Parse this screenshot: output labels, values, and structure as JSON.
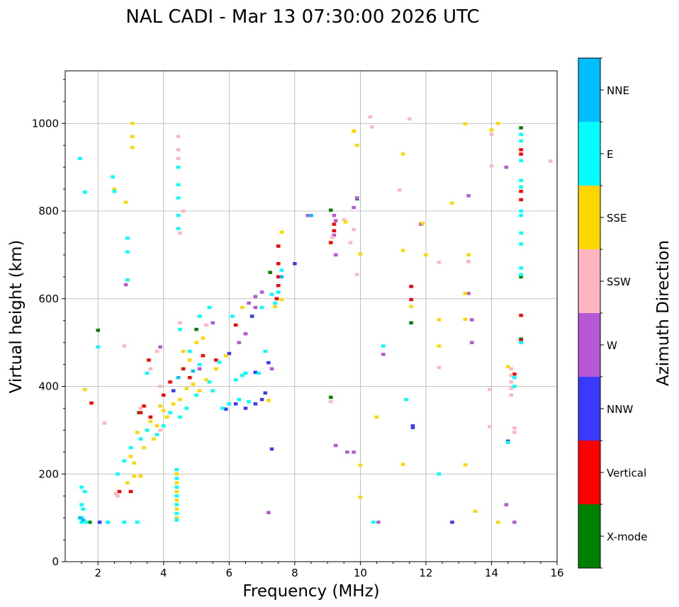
{
  "chart_data": {
    "type": "scatter",
    "title": "NAL CADI - Mar 13 07:30:00 2026 UTC",
    "xlabel": "Frequency (MHz)",
    "ylabel": "Virtual height (km)",
    "xlim": [
      1,
      16
    ],
    "ylim": [
      0,
      1120
    ],
    "xticks": [
      2,
      4,
      6,
      8,
      10,
      12,
      14,
      16
    ],
    "yticks": [
      0,
      200,
      400,
      600,
      800,
      1000
    ],
    "grid": true,
    "colorbar": {
      "label": "Azimuth Direction",
      "categories": [
        {
          "name": "X-mode",
          "color": "#008000"
        },
        {
          "name": "Vertical",
          "color": "#ff0000"
        },
        {
          "name": "NNW",
          "color": "#3a3aff"
        },
        {
          "name": "W",
          "color": "#b657d6"
        },
        {
          "name": "SSW",
          "color": "#ffb6c1"
        },
        {
          "name": "SSE",
          "color": "#ffd700"
        },
        {
          "name": "E",
          "color": "#00ffff"
        },
        {
          "name": "NNE",
          "color": "#00bfff"
        }
      ]
    },
    "series": [
      {
        "name": "X-mode",
        "points": [
          [
            1.75,
            90
          ],
          [
            2.0,
            528
          ],
          [
            9.1,
            802
          ],
          [
            9.1,
            375
          ],
          [
            9.9,
            828
          ],
          [
            11.55,
            545
          ],
          [
            14.9,
            990
          ],
          [
            14.9,
            650
          ],
          [
            14.9,
            508
          ],
          [
            7.25,
            660
          ],
          [
            3.25,
            340
          ],
          [
            5.0,
            530
          ]
        ]
      },
      {
        "name": "Vertical",
        "points": [
          [
            1.8,
            362
          ],
          [
            7.5,
            720
          ],
          [
            7.5,
            680
          ],
          [
            7.5,
            650
          ],
          [
            7.5,
            630
          ],
          [
            7.45,
            600
          ],
          [
            9.2,
            770
          ],
          [
            9.2,
            755
          ],
          [
            9.1,
            728
          ],
          [
            11.55,
            628
          ],
          [
            11.55,
            598
          ],
          [
            14.9,
            940
          ],
          [
            14.9,
            930
          ],
          [
            14.9,
            845
          ],
          [
            14.9,
            826
          ],
          [
            14.9,
            562
          ],
          [
            14.9,
            505
          ],
          [
            14.7,
            428
          ],
          [
            3.3,
            340
          ],
          [
            3.4,
            355
          ],
          [
            3.6,
            330
          ],
          [
            4.1,
            330
          ],
          [
            4.2,
            410
          ],
          [
            3.55,
            460
          ],
          [
            2.65,
            160
          ],
          [
            3.0,
            160
          ],
          [
            4.6,
            440
          ],
          [
            4.8,
            420
          ],
          [
            5.2,
            470
          ],
          [
            5.6,
            460
          ],
          [
            6.2,
            540
          ],
          [
            6.5,
            520
          ],
          [
            4.0,
            380
          ]
        ]
      },
      {
        "name": "NNW",
        "points": [
          [
            2.05,
            90
          ],
          [
            2.3,
            90
          ],
          [
            7.1,
            385
          ],
          [
            7.0,
            370
          ],
          [
            6.8,
            360
          ],
          [
            6.5,
            350
          ],
          [
            6.2,
            360
          ],
          [
            5.9,
            348
          ],
          [
            6.8,
            432
          ],
          [
            7.2,
            454
          ],
          [
            7.3,
            257
          ],
          [
            11.6,
            310
          ],
          [
            11.6,
            306
          ],
          [
            12.8,
            90
          ],
          [
            14.5,
            275
          ],
          [
            8.0,
            680
          ],
          [
            6.0,
            475
          ],
          [
            6.7,
            560
          ],
          [
            4.3,
            390
          ]
        ]
      },
      {
        "name": "W",
        "points": [
          [
            9.6,
            250
          ],
          [
            9.8,
            250
          ],
          [
            9.25,
            265
          ],
          [
            10.55,
            90
          ],
          [
            13.3,
            835
          ],
          [
            13.3,
            685
          ],
          [
            13.3,
            612
          ],
          [
            13.4,
            552
          ],
          [
            13.4,
            500
          ],
          [
            14.45,
            900
          ],
          [
            14.45,
            130
          ],
          [
            14.7,
            90
          ],
          [
            9.8,
            808
          ],
          [
            9.9,
            830
          ],
          [
            7.2,
            112
          ],
          [
            10.7,
            473
          ],
          [
            6.5,
            520
          ],
          [
            6.6,
            590
          ],
          [
            6.8,
            605
          ],
          [
            7.0,
            615
          ],
          [
            6.3,
            500
          ],
          [
            5.1,
            440
          ],
          [
            3.9,
            490
          ],
          [
            2.85,
            632
          ],
          [
            9.25,
            700
          ],
          [
            9.2,
            790
          ],
          [
            9.25,
            778
          ],
          [
            11.85,
            770
          ],
          [
            8.4,
            790
          ],
          [
            9.2,
            745
          ],
          [
            7.3,
            440
          ],
          [
            5.5,
            545
          ],
          [
            6.8,
            580
          ]
        ]
      },
      {
        "name": "SSW",
        "points": [
          [
            4.45,
            970
          ],
          [
            4.45,
            940
          ],
          [
            4.45,
            920
          ],
          [
            4.6,
            800
          ],
          [
            10.3,
            1015
          ],
          [
            10.35,
            992
          ],
          [
            11.5,
            1010
          ],
          [
            12.4,
            683
          ],
          [
            12.4,
            443
          ],
          [
            13.3,
            685
          ],
          [
            14.0,
            903
          ],
          [
            14.0,
            975
          ],
          [
            14.6,
            440
          ],
          [
            14.6,
            425
          ],
          [
            14.6,
            410
          ],
          [
            14.6,
            395
          ],
          [
            14.6,
            380
          ],
          [
            14.7,
            305
          ],
          [
            14.7,
            295
          ],
          [
            15.8,
            914
          ],
          [
            11.2,
            848
          ],
          [
            9.8,
            758
          ],
          [
            9.9,
            655
          ],
          [
            2.8,
            492
          ],
          [
            2.2,
            316
          ],
          [
            2.55,
            155
          ],
          [
            2.6,
            150
          ],
          [
            13.95,
            393
          ],
          [
            13.95,
            308
          ],
          [
            9.1,
            365
          ],
          [
            9.15,
            740
          ],
          [
            4.5,
            750
          ],
          [
            5.3,
            540
          ],
          [
            4.5,
            545
          ],
          [
            3.8,
            480
          ],
          [
            3.9,
            400
          ],
          [
            3.9,
            300
          ],
          [
            3.3,
            350
          ],
          [
            3.6,
            440
          ],
          [
            9.7,
            728
          ],
          [
            9.5,
            780
          ]
        ]
      },
      {
        "name": "SSE",
        "points": [
          [
            3.05,
            1000
          ],
          [
            3.05,
            970
          ],
          [
            3.05,
            945
          ],
          [
            1.6,
            393
          ],
          [
            2.85,
            820
          ],
          [
            2.5,
            850
          ],
          [
            3.1,
            195
          ],
          [
            3.3,
            195
          ],
          [
            4.4,
            200
          ],
          [
            4.4,
            180
          ],
          [
            4.4,
            160
          ],
          [
            4.4,
            140
          ],
          [
            4.4,
            120
          ],
          [
            4.4,
            100
          ],
          [
            9.8,
            983
          ],
          [
            9.9,
            950
          ],
          [
            9.55,
            775
          ],
          [
            10.0,
            702
          ],
          [
            10.0,
            147
          ],
          [
            10.0,
            220
          ],
          [
            10.5,
            330
          ],
          [
            11.3,
            930
          ],
          [
            11.3,
            710
          ],
          [
            11.3,
            222
          ],
          [
            11.55,
            582
          ],
          [
            11.9,
            772
          ],
          [
            12.0,
            700
          ],
          [
            12.4,
            552
          ],
          [
            12.4,
            492
          ],
          [
            12.8,
            818
          ],
          [
            13.2,
            553
          ],
          [
            13.2,
            221
          ],
          [
            13.2,
            999
          ],
          [
            13.5,
            115
          ],
          [
            14.0,
            985
          ],
          [
            14.2,
            1000
          ],
          [
            14.2,
            90
          ],
          [
            14.5,
            445
          ],
          [
            7.2,
            368
          ],
          [
            7.6,
            752
          ],
          [
            7.6,
            598
          ],
          [
            7.4,
            582
          ],
          [
            9.8,
            982
          ],
          [
            3.5,
            300
          ],
          [
            3.6,
            320
          ],
          [
            3.7,
            280
          ],
          [
            3.8,
            310
          ],
          [
            4.0,
            345
          ],
          [
            4.3,
            360
          ],
          [
            4.5,
            370
          ],
          [
            4.7,
            395
          ],
          [
            4.9,
            405
          ],
          [
            5.1,
            390
          ],
          [
            5.3,
            415
          ],
          [
            5.0,
            500
          ],
          [
            4.8,
            460
          ],
          [
            4.6,
            480
          ],
          [
            5.2,
            510
          ],
          [
            3.2,
            295
          ],
          [
            3.4,
            260
          ],
          [
            3.0,
            240
          ],
          [
            3.1,
            225
          ],
          [
            4.1,
            330
          ],
          [
            3.9,
            355
          ],
          [
            2.9,
            180
          ],
          [
            5.9,
            470
          ],
          [
            6.4,
            580
          ],
          [
            5.6,
            440
          ],
          [
            13.3,
            700
          ],
          [
            13.2,
            612
          ]
        ]
      },
      {
        "name": "E",
        "points": [
          [
            1.45,
            920
          ],
          [
            1.6,
            843
          ],
          [
            2.45,
            878
          ],
          [
            2.5,
            845
          ],
          [
            2.9,
            738
          ],
          [
            2.9,
            707
          ],
          [
            2.9,
            643
          ],
          [
            4.45,
            900
          ],
          [
            4.45,
            860
          ],
          [
            4.45,
            830
          ],
          [
            4.45,
            790
          ],
          [
            4.45,
            760
          ],
          [
            4.5,
            530
          ],
          [
            4.4,
            210
          ],
          [
            4.4,
            190
          ],
          [
            4.4,
            170
          ],
          [
            4.4,
            150
          ],
          [
            4.4,
            130
          ],
          [
            4.4,
            110
          ],
          [
            4.4,
            95
          ],
          [
            1.5,
            100
          ],
          [
            1.55,
            120
          ],
          [
            1.5,
            130
          ],
          [
            1.6,
            160
          ],
          [
            1.5,
            170
          ],
          [
            2.3,
            90
          ],
          [
            2.8,
            90
          ],
          [
            3.2,
            90
          ],
          [
            10.7,
            492
          ],
          [
            11.4,
            370
          ],
          [
            12.4,
            200
          ],
          [
            14.9,
            975
          ],
          [
            14.9,
            960
          ],
          [
            14.9,
            915
          ],
          [
            14.9,
            870
          ],
          [
            14.9,
            855
          ],
          [
            14.9,
            800
          ],
          [
            14.9,
            790
          ],
          [
            14.9,
            750
          ],
          [
            14.9,
            725
          ],
          [
            14.9,
            670
          ],
          [
            14.9,
            655
          ],
          [
            14.9,
            500
          ],
          [
            14.7,
            420
          ],
          [
            14.7,
            400
          ],
          [
            14.5,
            272
          ],
          [
            10.4,
            90
          ],
          [
            7.3,
            610
          ],
          [
            7.5,
            615
          ],
          [
            7.6,
            665
          ],
          [
            6.5,
            430
          ],
          [
            6.4,
            425
          ],
          [
            6.2,
            415
          ],
          [
            6.3,
            370
          ],
          [
            6.6,
            365
          ],
          [
            6.0,
            360
          ],
          [
            5.8,
            350
          ],
          [
            5.5,
            390
          ],
          [
            5.4,
            410
          ],
          [
            5.0,
            380
          ],
          [
            4.7,
            350
          ],
          [
            4.5,
            330
          ],
          [
            4.2,
            340
          ],
          [
            4.0,
            310
          ],
          [
            3.8,
            290
          ],
          [
            3.5,
            300
          ],
          [
            3.3,
            280
          ],
          [
            2.6,
            200
          ],
          [
            2.8,
            230
          ],
          [
            3.0,
            260
          ],
          [
            5.1,
            560
          ],
          [
            5.4,
            580
          ],
          [
            6.1,
            560
          ],
          [
            3.5,
            430
          ],
          [
            4.8,
            480
          ],
          [
            5.1,
            450
          ],
          [
            5.7,
            455
          ],
          [
            7.0,
            580
          ],
          [
            7.1,
            480
          ],
          [
            7.4,
            590
          ],
          [
            6.9,
            430
          ],
          [
            2.0,
            490
          ],
          [
            1.5,
            90
          ],
          [
            1.65,
            90
          ]
        ]
      },
      {
        "name": "NNE",
        "points": [
          [
            1.45,
            100
          ],
          [
            1.55,
            95
          ],
          [
            4.45,
            420
          ],
          [
            4.9,
            435
          ],
          [
            7.6,
            650
          ],
          [
            8.5,
            790
          ]
        ]
      }
    ]
  }
}
